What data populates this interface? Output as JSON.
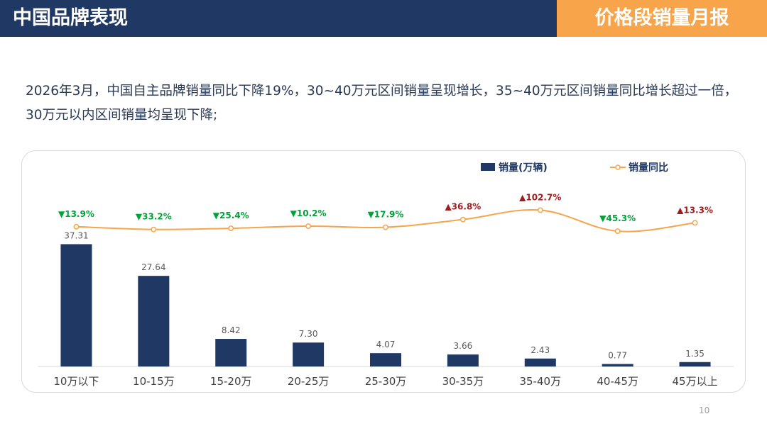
{
  "header": {
    "title": "中国品牌表现",
    "report_name": "价格段销量月报"
  },
  "summary": "2026年3月，中国自主品牌销量同比下降19%，30~40万元区间销量呈现增长，35~40万元区间销量同比增长超过一倍，30万元以内区间销量均呈现下降;",
  "page_number": "10",
  "colors": {
    "header_bg": "#1f3864",
    "accent": "#f7a44a",
    "bar": "#1f3864",
    "line": "#f7a44a",
    "down": "#00a33a",
    "up": "#a11d1d"
  },
  "chart_data": {
    "type": "bar+line",
    "categories": [
      "10万以下",
      "10-15万",
      "15-20万",
      "20-25万",
      "25-30万",
      "30-35万",
      "35-40万",
      "40-45万",
      "45万以上"
    ],
    "series": [
      {
        "name": "销量(万辆)",
        "type": "bar",
        "values": [
          37.31,
          27.64,
          8.42,
          7.3,
          4.07,
          3.66,
          2.43,
          0.77,
          1.35
        ],
        "labels": [
          "37.31",
          "27.64",
          "8.42",
          "7.30",
          "4.07",
          "3.66",
          "2.43",
          "0.77",
          "1.35"
        ]
      },
      {
        "name": "销量同比",
        "type": "line",
        "values": [
          -13.9,
          -33.2,
          -25.4,
          -10.2,
          -17.9,
          36.8,
          102.7,
          -45.3,
          13.3
        ],
        "labels": [
          "▼13.9%",
          "▼33.2%",
          "▼25.4%",
          "▼10.2%",
          "▼17.9%",
          "▲36.8%",
          "▲102.7%",
          "▼45.3%",
          "▲13.3%"
        ]
      }
    ],
    "legend_position": "top-right",
    "grid": false
  }
}
